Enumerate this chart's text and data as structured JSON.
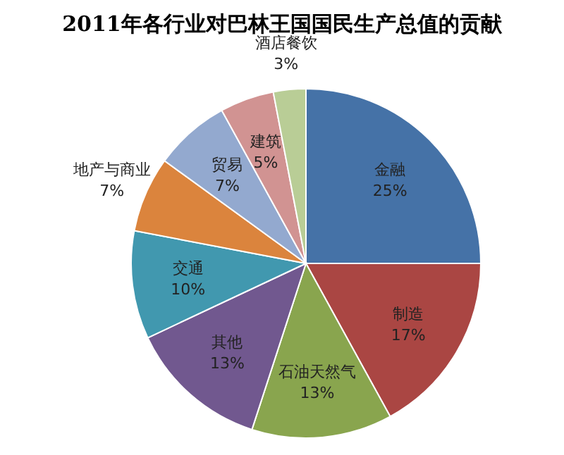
{
  "chart_data": {
    "type": "pie",
    "title": "2011年各行业对巴林王国国民生产总值的贡献",
    "categories": [
      "金融",
      "制造",
      "石油天然气",
      "其他",
      "交通",
      "地产与商业",
      "贸易",
      "建筑",
      "酒店餐饮"
    ],
    "values": [
      25,
      17,
      13,
      13,
      10,
      7,
      7,
      5,
      3
    ],
    "value_labels": [
      "25%",
      "17%",
      "13%",
      "13%",
      "10%",
      "7%",
      "7%",
      "5%",
      "3%"
    ],
    "colors": [
      "#4572a7",
      "#aa4643",
      "#89a54e",
      "#71588f",
      "#4198af",
      "#db843d",
      "#93a9cf",
      "#d19392",
      "#b9cd96"
    ]
  }
}
